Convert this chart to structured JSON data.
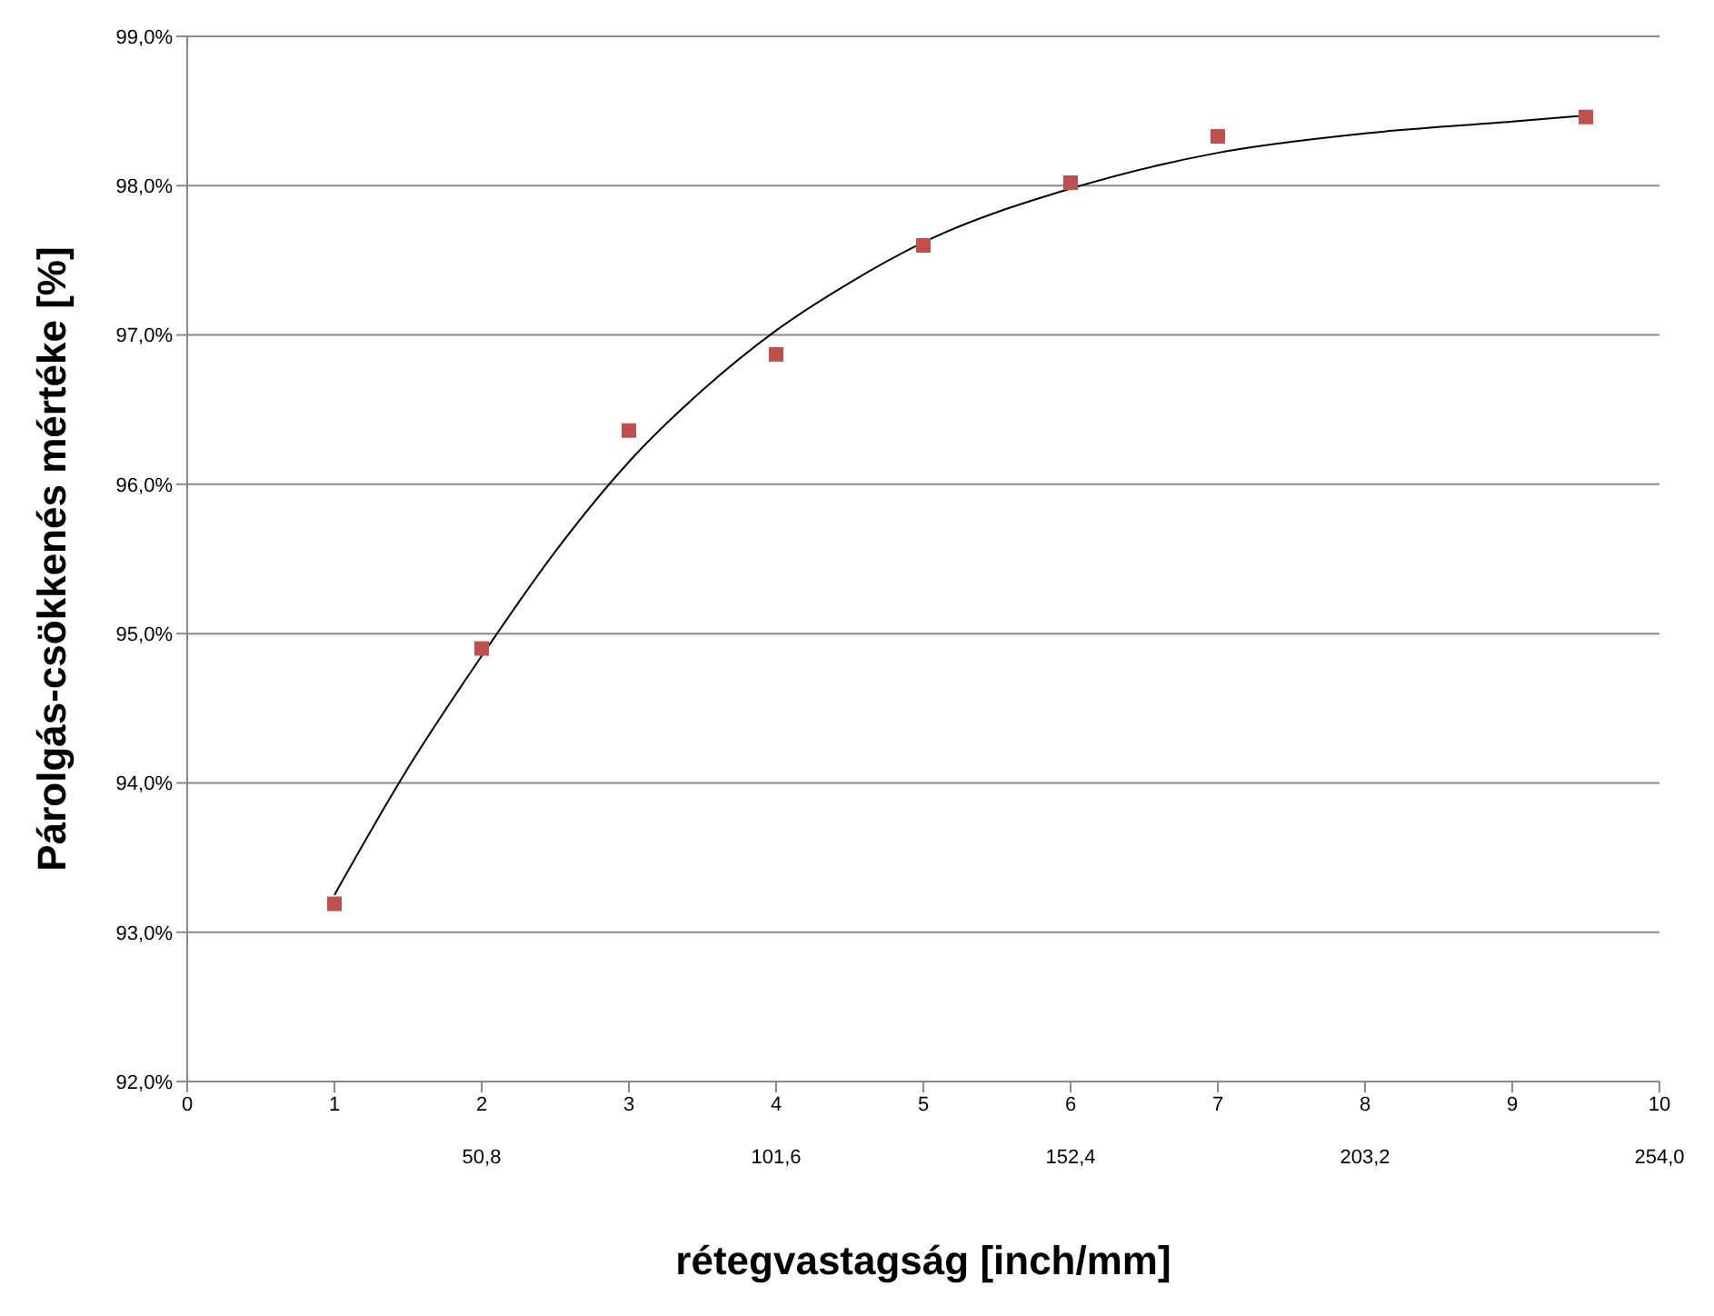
{
  "chart_data": {
    "type": "scatter",
    "xlabel": "rétegvastagság [inch/mm]",
    "ylabel": "Párolgás-csökkenés mértéke [%]",
    "xlim": [
      0,
      10
    ],
    "xticks": [
      0,
      1,
      2,
      3,
      4,
      5,
      6,
      7,
      8,
      9,
      10
    ],
    "x2lim": [
      0,
      254
    ],
    "x2ticks": [
      {
        "value": 50.8,
        "label": "50,8"
      },
      {
        "value": 101.6,
        "label": "101,6"
      },
      {
        "value": 152.4,
        "label": "152,4"
      },
      {
        "value": 203.2,
        "label": "203,2"
      },
      {
        "value": 254,
        "label": "254,0"
      }
    ],
    "ylim": [
      92,
      99
    ],
    "yticks": [
      {
        "value": 92,
        "label": "92,0%"
      },
      {
        "value": 93,
        "label": "93,0%"
      },
      {
        "value": 94,
        "label": "94,0%"
      },
      {
        "value": 95,
        "label": "95,0%"
      },
      {
        "value": 96,
        "label": "96,0%"
      },
      {
        "value": 97,
        "label": "97,0%"
      },
      {
        "value": 98,
        "label": "98,0%"
      },
      {
        "value": 99,
        "label": "99,0%"
      }
    ],
    "grid": "y",
    "legend": false,
    "series": [
      {
        "type": "scatter",
        "color": "#c0504d",
        "marker": "square",
        "x": [
          1,
          2,
          3,
          4,
          5,
          6,
          7,
          9.5
        ],
        "values": [
          93.19,
          94.9,
          96.36,
          96.87,
          97.6,
          98.02,
          98.33,
          98.46
        ]
      },
      {
        "type": "line",
        "color": "#000000",
        "marker": "none",
        "line_style": "solid",
        "x": [
          1,
          1.5,
          2,
          2.5,
          3,
          3.5,
          4,
          4.5,
          5,
          6,
          7,
          8,
          9,
          9.5
        ],
        "values": [
          93.25,
          94.1,
          94.85,
          95.55,
          96.15,
          96.63,
          97.03,
          97.35,
          97.62,
          97.98,
          98.22,
          98.35,
          98.43,
          98.47
        ]
      }
    ]
  }
}
